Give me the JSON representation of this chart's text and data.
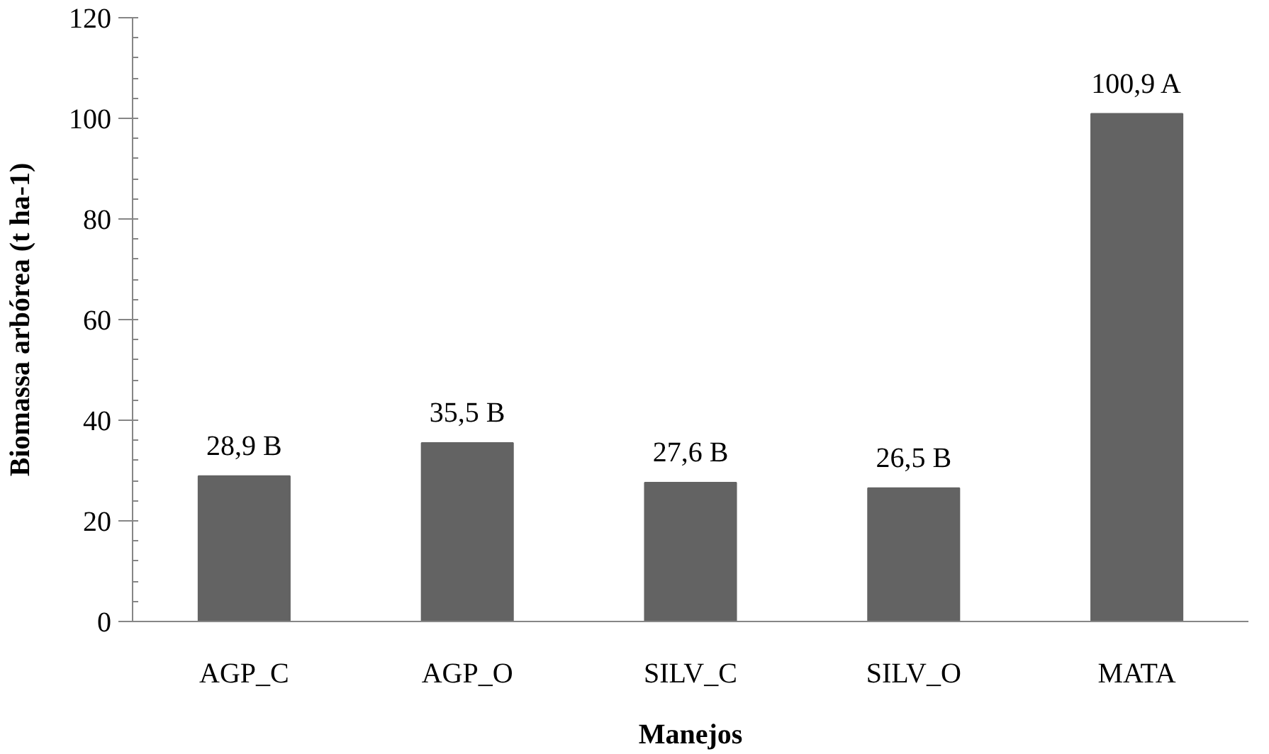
{
  "chart_data": {
    "type": "bar",
    "xlabel": "Manejos",
    "ylabel": "Biomassa arbórea (t ha-1)",
    "categories": [
      "AGP_C",
      "AGP_O",
      "SILV_C",
      "SILV_O",
      "MATA"
    ],
    "values": [
      28.9,
      35.5,
      27.6,
      26.5,
      100.9
    ],
    "value_labels": [
      "28,9 B",
      "35,5 B",
      "27,6 B",
      "26,5 B",
      "100,9 A"
    ],
    "color": "#636363",
    "ylim": [
      0,
      120
    ],
    "yticks": [
      0,
      20,
      40,
      60,
      80,
      100,
      120
    ],
    "grid": false
  }
}
